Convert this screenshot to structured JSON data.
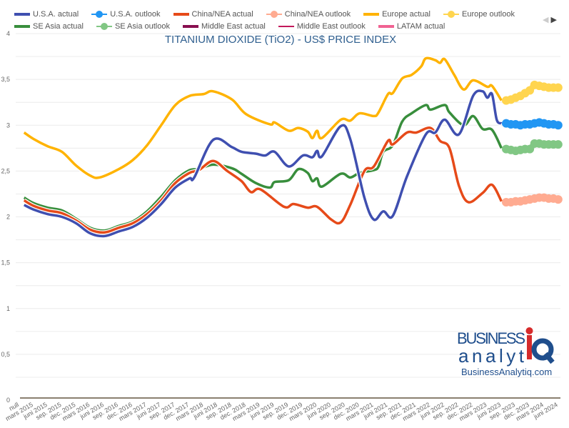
{
  "chart_data": {
    "type": "line",
    "title": "TITANIUM DIOXIDE (TiO2) - US$ PRICE INDEX",
    "xlabel": "",
    "ylabel": "",
    "ylim": [
      0,
      4
    ],
    "y_ticks": [
      "0",
      "0,5",
      "1",
      "1,5",
      "2",
      "2,5",
      "3",
      "3,5",
      "4"
    ],
    "y_tick_values": [
      0,
      0.5,
      1,
      1.5,
      2,
      2.5,
      3,
      3.5,
      4
    ],
    "grid": true,
    "legend_placement": "top",
    "x_tick_labels": [
      "null",
      "mars 2015",
      "juni 2015",
      "sep. 2015",
      "dec. 2015",
      "mars 2016",
      "juni 2016",
      "sep. 2016",
      "dec. 2016",
      "mars 2017",
      "juni 2017",
      "sep. 2017",
      "dec. 2017",
      "mars 2018",
      "juni 2018",
      "sep. 2018",
      "dec. 2018",
      "mars 2019",
      "juni 2019",
      "sep. 2019",
      "dec. 2019",
      "mars 2020",
      "juni 2020",
      "sep. 2020",
      "dec. 2020",
      "mars 2021",
      "juni 2021",
      "sep. 2021",
      "dec. 2021",
      "mars 2022",
      "juni 2022",
      "sep. 2022",
      "dec. 2022",
      "mars 2023",
      "juni 2023",
      "sep. 2023",
      "dec. 2023",
      "mars 2024",
      "juni 2024"
    ],
    "series": [
      {
        "name": "U.S.A. actual",
        "color": "#3f4fb0",
        "style": "line",
        "points": [
          [
            "2015-01",
            2.13
          ],
          [
            "2015-03",
            2.08
          ],
          [
            "2015-06",
            2.03
          ],
          [
            "2015-09",
            2.0
          ],
          [
            "2015-12",
            1.93
          ],
          [
            "2016-03",
            1.82
          ],
          [
            "2016-06",
            1.79
          ],
          [
            "2016-09",
            1.84
          ],
          [
            "2016-12",
            1.89
          ],
          [
            "2017-03",
            1.99
          ],
          [
            "2017-06",
            2.14
          ],
          [
            "2017-09",
            2.32
          ],
          [
            "2017-12",
            2.42
          ],
          [
            "2018-01",
            2.43
          ],
          [
            "2018-05",
            2.84
          ],
          [
            "2018-09",
            2.76
          ],
          [
            "2018-11",
            2.71
          ],
          [
            "2019-02",
            2.69
          ],
          [
            "2019-04",
            2.67
          ],
          [
            "2019-06",
            2.71
          ],
          [
            "2019-09",
            2.55
          ],
          [
            "2019-12",
            2.67
          ],
          [
            "2020-02",
            2.65
          ],
          [
            "2020-03",
            2.72
          ],
          [
            "2020-04",
            2.66
          ],
          [
            "2020-08",
            2.99
          ],
          [
            "2020-10",
            2.85
          ],
          [
            "2021-01",
            2.21
          ],
          [
            "2021-03",
            1.97
          ],
          [
            "2021-05",
            2.06
          ],
          [
            "2021-07",
            2.01
          ],
          [
            "2021-10",
            2.44
          ],
          [
            "2022-02",
            2.9
          ],
          [
            "2022-04",
            2.92
          ],
          [
            "2022-06",
            3.06
          ],
          [
            "2022-09",
            2.9
          ],
          [
            "2022-12",
            3.32
          ],
          [
            "2023-02",
            3.37
          ],
          [
            "2023-03",
            3.3
          ],
          [
            "2023-04",
            3.34
          ],
          [
            "2023-05",
            3.06
          ],
          [
            "2023-06",
            3.02
          ]
        ]
      },
      {
        "name": "U.S.A. outlook",
        "color": "#2196f3",
        "style": "marker",
        "points": [
          [
            "2023-07",
            3.02
          ],
          [
            "2023-08",
            3.01
          ],
          [
            "2023-09",
            3.01
          ],
          [
            "2023-10",
            3.0
          ],
          [
            "2023-11",
            3.01
          ],
          [
            "2023-12",
            3.01
          ],
          [
            "2024-01",
            3.02
          ],
          [
            "2024-02",
            3.03
          ],
          [
            "2024-03",
            3.02
          ],
          [
            "2024-04",
            3.01
          ],
          [
            "2024-05",
            3.01
          ],
          [
            "2024-06",
            3.0
          ]
        ]
      },
      {
        "name": "China/NEA actual",
        "color": "#e64a19",
        "style": "line",
        "points": [
          [
            "2015-01",
            2.18
          ],
          [
            "2015-03",
            2.12
          ],
          [
            "2015-06",
            2.07
          ],
          [
            "2015-09",
            2.04
          ],
          [
            "2015-12",
            1.96
          ],
          [
            "2016-03",
            1.86
          ],
          [
            "2016-06",
            1.83
          ],
          [
            "2016-09",
            1.88
          ],
          [
            "2016-12",
            1.93
          ],
          [
            "2017-03",
            2.03
          ],
          [
            "2017-06",
            2.18
          ],
          [
            "2017-09",
            2.37
          ],
          [
            "2017-12",
            2.48
          ],
          [
            "2018-02",
            2.51
          ],
          [
            "2018-05",
            2.61
          ],
          [
            "2018-08",
            2.5
          ],
          [
            "2018-11",
            2.39
          ],
          [
            "2019-01",
            2.27
          ],
          [
            "2019-03",
            2.3
          ],
          [
            "2019-08",
            2.11
          ],
          [
            "2019-10",
            2.14
          ],
          [
            "2020-01",
            2.1
          ],
          [
            "2020-03",
            2.11
          ],
          [
            "2020-06",
            1.97
          ],
          [
            "2020-08",
            1.94
          ],
          [
            "2020-10",
            2.13
          ],
          [
            "2021-01",
            2.5
          ],
          [
            "2021-03",
            2.55
          ],
          [
            "2021-06",
            2.83
          ],
          [
            "2021-07",
            2.79
          ],
          [
            "2021-10",
            2.92
          ],
          [
            "2021-12",
            2.92
          ],
          [
            "2022-03",
            2.97
          ],
          [
            "2022-05",
            2.83
          ],
          [
            "2022-07",
            2.75
          ],
          [
            "2022-09",
            2.34
          ],
          [
            "2022-11",
            2.16
          ],
          [
            "2023-02",
            2.26
          ],
          [
            "2023-04",
            2.35
          ],
          [
            "2023-06",
            2.17
          ]
        ]
      },
      {
        "name": "China/NEA outlook",
        "color": "#ffab91",
        "style": "marker",
        "points": [
          [
            "2023-07",
            2.16
          ],
          [
            "2023-08",
            2.16
          ],
          [
            "2023-09",
            2.17
          ],
          [
            "2023-10",
            2.17
          ],
          [
            "2023-11",
            2.18
          ],
          [
            "2023-12",
            2.19
          ],
          [
            "2024-01",
            2.2
          ],
          [
            "2024-02",
            2.21
          ],
          [
            "2024-03",
            2.21
          ],
          [
            "2024-04",
            2.2
          ],
          [
            "2024-05",
            2.2
          ],
          [
            "2024-06",
            2.19
          ]
        ]
      },
      {
        "name": "Europe actual",
        "color": "#ffb300",
        "style": "line",
        "points": [
          [
            "2015-01",
            2.92
          ],
          [
            "2015-03",
            2.85
          ],
          [
            "2015-06",
            2.77
          ],
          [
            "2015-09",
            2.71
          ],
          [
            "2015-12",
            2.56
          ],
          [
            "2016-03",
            2.45
          ],
          [
            "2016-05",
            2.43
          ],
          [
            "2016-09",
            2.52
          ],
          [
            "2016-12",
            2.62
          ],
          [
            "2017-03",
            2.78
          ],
          [
            "2017-06",
            3.0
          ],
          [
            "2017-09",
            3.22
          ],
          [
            "2017-12",
            3.32
          ],
          [
            "2018-03",
            3.34
          ],
          [
            "2018-05",
            3.37
          ],
          [
            "2018-09",
            3.28
          ],
          [
            "2018-12",
            3.12
          ],
          [
            "2019-05",
            3.01
          ],
          [
            "2019-06",
            3.03
          ],
          [
            "2019-09",
            2.94
          ],
          [
            "2019-11",
            2.97
          ],
          [
            "2020-01",
            2.93
          ],
          [
            "2020-02",
            2.86
          ],
          [
            "2020-03",
            2.94
          ],
          [
            "2020-04",
            2.86
          ],
          [
            "2020-08",
            3.06
          ],
          [
            "2020-10",
            3.05
          ],
          [
            "2020-12",
            3.13
          ],
          [
            "2021-03",
            3.1
          ],
          [
            "2021-04",
            3.14
          ],
          [
            "2021-06",
            3.34
          ],
          [
            "2021-07",
            3.35
          ],
          [
            "2021-09",
            3.51
          ],
          [
            "2021-11",
            3.55
          ],
          [
            "2022-01",
            3.64
          ],
          [
            "2022-02",
            3.73
          ],
          [
            "2022-04",
            3.71
          ],
          [
            "2022-05",
            3.68
          ],
          [
            "2022-06",
            3.72
          ],
          [
            "2022-08",
            3.55
          ],
          [
            "2022-10",
            3.39
          ],
          [
            "2022-12",
            3.49
          ],
          [
            "2023-03",
            3.42
          ],
          [
            "2023-04",
            3.43
          ],
          [
            "2023-06",
            3.27
          ]
        ]
      },
      {
        "name": "Europe outlook",
        "color": "#ffd54f",
        "style": "marker",
        "points": [
          [
            "2023-07",
            3.27
          ],
          [
            "2023-08",
            3.28
          ],
          [
            "2023-09",
            3.3
          ],
          [
            "2023-10",
            3.32
          ],
          [
            "2023-11",
            3.35
          ],
          [
            "2023-12",
            3.38
          ],
          [
            "2024-01",
            3.44
          ],
          [
            "2024-02",
            3.43
          ],
          [
            "2024-03",
            3.42
          ],
          [
            "2024-04",
            3.41
          ],
          [
            "2024-05",
            3.41
          ],
          [
            "2024-06",
            3.41
          ]
        ]
      },
      {
        "name": "SE Asia actual",
        "color": "#388e3c",
        "style": "line",
        "points": [
          [
            "2015-01",
            2.21
          ],
          [
            "2015-03",
            2.15
          ],
          [
            "2015-06",
            2.1
          ],
          [
            "2015-09",
            2.07
          ],
          [
            "2015-12",
            1.98
          ],
          [
            "2016-03",
            1.88
          ],
          [
            "2016-06",
            1.85
          ],
          [
            "2016-09",
            1.9
          ],
          [
            "2016-12",
            1.95
          ],
          [
            "2017-03",
            2.06
          ],
          [
            "2017-06",
            2.22
          ],
          [
            "2017-09",
            2.4
          ],
          [
            "2017-12",
            2.51
          ],
          [
            "2018-02",
            2.52
          ],
          [
            "2018-05",
            2.57
          ],
          [
            "2018-09",
            2.53
          ],
          [
            "2018-11",
            2.47
          ],
          [
            "2019-02",
            2.37
          ],
          [
            "2019-05",
            2.32
          ],
          [
            "2019-06",
            2.38
          ],
          [
            "2019-09",
            2.4
          ],
          [
            "2019-11",
            2.52
          ],
          [
            "2020-01",
            2.48
          ],
          [
            "2020-02",
            2.39
          ],
          [
            "2020-03",
            2.42
          ],
          [
            "2020-04",
            2.33
          ],
          [
            "2020-08",
            2.47
          ],
          [
            "2020-10",
            2.43
          ],
          [
            "2020-12",
            2.48
          ],
          [
            "2021-03",
            2.51
          ],
          [
            "2021-04",
            2.55
          ],
          [
            "2021-05",
            2.71
          ],
          [
            "2021-07",
            2.78
          ],
          [
            "2021-09",
            3.04
          ],
          [
            "2021-11",
            3.13
          ],
          [
            "2022-02",
            3.22
          ],
          [
            "2022-03",
            3.17
          ],
          [
            "2022-06",
            3.22
          ],
          [
            "2022-07",
            3.14
          ],
          [
            "2022-10",
            3.0
          ],
          [
            "2022-12",
            3.1
          ],
          [
            "2023-02",
            2.96
          ],
          [
            "2023-04",
            2.95
          ],
          [
            "2023-06",
            2.75
          ]
        ]
      },
      {
        "name": "SE Asia outlook",
        "color": "#81c784",
        "style": "marker",
        "points": [
          [
            "2023-07",
            2.74
          ],
          [
            "2023-08",
            2.73
          ],
          [
            "2023-09",
            2.72
          ],
          [
            "2023-10",
            2.73
          ],
          [
            "2023-11",
            2.74
          ],
          [
            "2023-12",
            2.74
          ],
          [
            "2024-01",
            2.8
          ],
          [
            "2024-02",
            2.8
          ],
          [
            "2024-03",
            2.79
          ],
          [
            "2024-04",
            2.79
          ],
          [
            "2024-05",
            2.79
          ],
          [
            "2024-06",
            2.79
          ]
        ]
      },
      {
        "name": "Middle East actual",
        "color": "#880e4f",
        "style": "line",
        "points": []
      },
      {
        "name": "Middle East outlook",
        "color": "#c2185b",
        "style": "thin",
        "points": []
      },
      {
        "name": "LATAM actual",
        "color": "#f06292",
        "style": "line",
        "points": []
      }
    ],
    "title_color": "#2f5f8f"
  },
  "nav": {
    "prev": "◀",
    "next": "▶"
  },
  "logo": {
    "line1": "BUSINESS",
    "line2": "analyt",
    "iq": "iQ",
    "url": "BusinessAnalytiq.com",
    "blue": "#1f4e8c",
    "red": "#d62b2b"
  }
}
